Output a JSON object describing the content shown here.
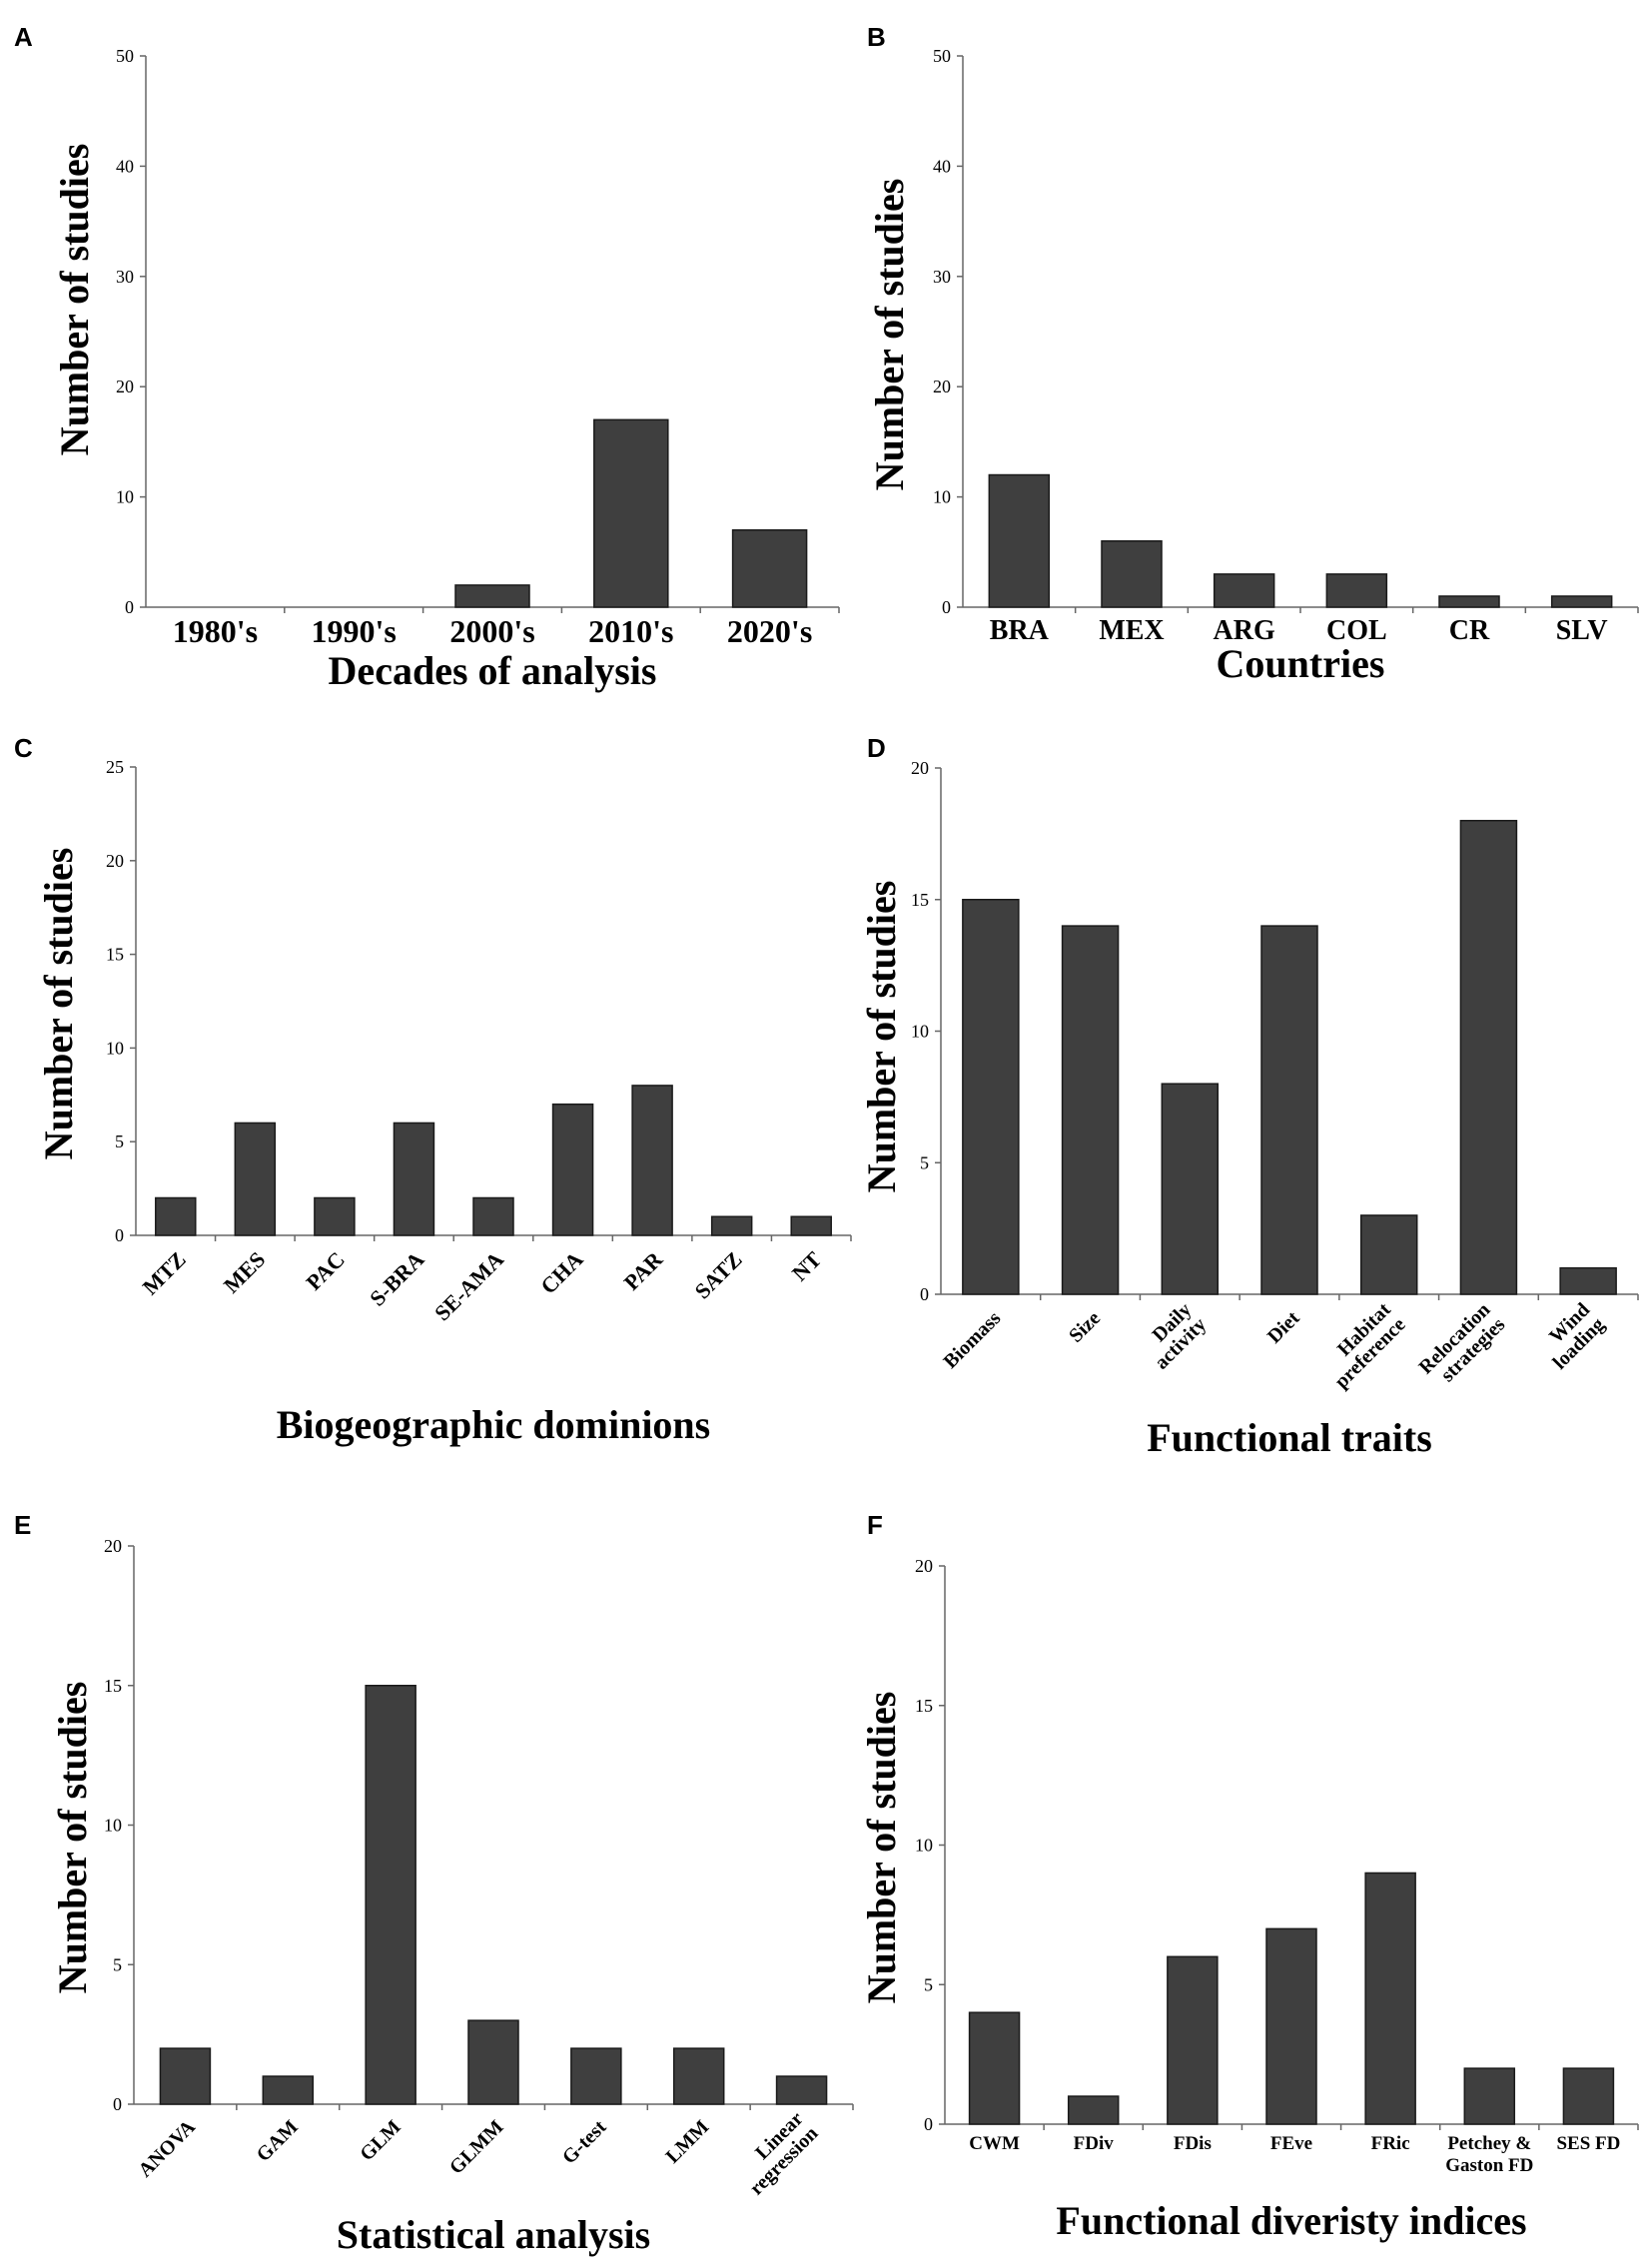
{
  "chart_data": [
    {
      "panel": "A",
      "type": "bar",
      "categories": [
        "1980's",
        "1990's",
        "2000's",
        "2010's",
        "2020's"
      ],
      "values": [
        0,
        0,
        2,
        17,
        7
      ],
      "ylim": [
        0,
        50
      ],
      "yticks": [
        0,
        10,
        20,
        30,
        40,
        50
      ],
      "xlabel": "Decades of analysis",
      "ylabel": "Number of studies"
    },
    {
      "panel": "B",
      "type": "bar",
      "categories": [
        "BRA",
        "MEX",
        "ARG",
        "COL",
        "CR",
        "SLV"
      ],
      "values": [
        12,
        6,
        3,
        3,
        1,
        1
      ],
      "ylim": [
        0,
        50
      ],
      "yticks": [
        0,
        10,
        20,
        30,
        40,
        50
      ],
      "xlabel": "Countries",
      "ylabel": "Number of studies"
    },
    {
      "panel": "C",
      "type": "bar",
      "categories": [
        "MTZ",
        "MES",
        "PAC",
        "S-BRA",
        "SE-AMA",
        "CHA",
        "PAR",
        "SATZ",
        "NT"
      ],
      "values": [
        2,
        6,
        2,
        6,
        2,
        7,
        8,
        1,
        1
      ],
      "ylim": [
        0,
        25
      ],
      "yticks": [
        0,
        5,
        10,
        15,
        20,
        25
      ],
      "xlabel": "Biogeographic dominions",
      "ylabel": "Number of studies"
    },
    {
      "panel": "D",
      "type": "bar",
      "categories": [
        "Biomass",
        "Size",
        "Daily\nactivity",
        "Diet",
        "Habitat\npreference",
        "Relocation\nstrategies",
        "Wind\nloading"
      ],
      "values": [
        15,
        14,
        8,
        14,
        3,
        18,
        1
      ],
      "ylim": [
        0,
        20
      ],
      "yticks": [
        0,
        5,
        10,
        15,
        20
      ],
      "xlabel": "Functional traits",
      "ylabel": "Number of studies"
    },
    {
      "panel": "E",
      "type": "bar",
      "categories": [
        "ANOVA",
        "GAM",
        "GLM",
        "GLMM",
        "G-test",
        "LMM",
        "Linear\nregression"
      ],
      "values": [
        2,
        1,
        15,
        3,
        2,
        2,
        1
      ],
      "ylim": [
        0,
        20
      ],
      "yticks": [
        0,
        5,
        10,
        15,
        20
      ],
      "xlabel": "Statistical analysis",
      "ylabel": "Number of studies"
    },
    {
      "panel": "F",
      "type": "bar",
      "categories": [
        "CWM",
        "FDiv",
        "FDis",
        "FEve",
        "FRic",
        "Petchey &\nGaston FD",
        "SES FD"
      ],
      "values": [
        4,
        1,
        6,
        7,
        9,
        2,
        2
      ],
      "ylim": [
        0,
        20
      ],
      "yticks": [
        0,
        5,
        10,
        15,
        20
      ],
      "xlabel": "Functional diveristy indices",
      "ylabel": "Number of studies"
    }
  ]
}
